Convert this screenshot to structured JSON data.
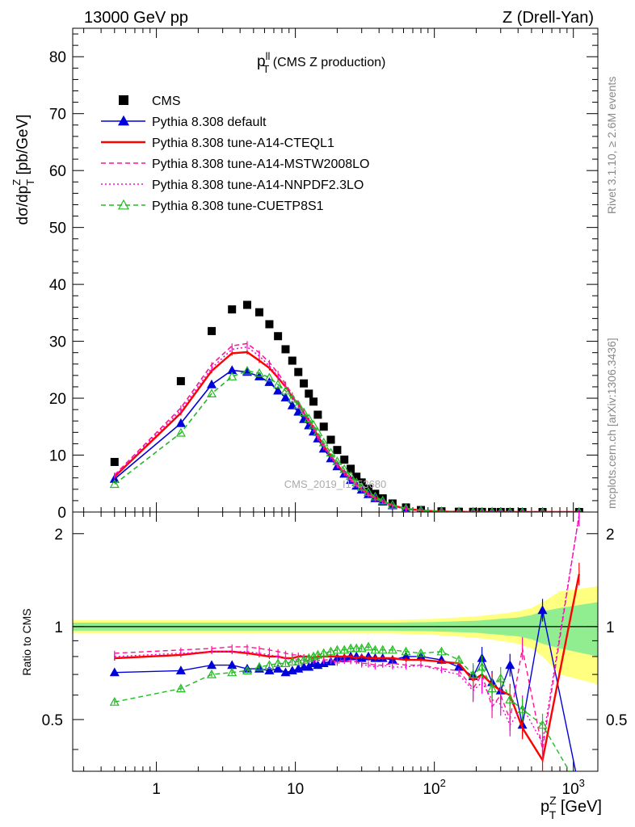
{
  "header": {
    "left": "13000 GeV pp",
    "right": "Z (Drell-Yan)"
  },
  "side_labels": {
    "top": "Rivet 3.1.10, ≥ 2.6M events",
    "bottom": "mcplots.cern.ch [arXiv:1306.3436]"
  },
  "watermark": "CMS_2019_I1753680",
  "plot_title": {
    "main": "p",
    "sup": "ll",
    "sub": "T",
    "rest": " (CMS Z production)"
  },
  "colors": {
    "cms": "#000000",
    "default": "#0000dd",
    "cteql1": "#ff0000",
    "mstw": "#ff1493",
    "nnpdf": "#ff00dd",
    "cuetp": "#22bb22",
    "band_inner": "#90ee90",
    "band_outer": "#ffff80"
  },
  "chart_data": [
    {
      "type": "scatter",
      "panel": "main",
      "ylabel": "dσ/dp",
      "ylabel_sup": "Z",
      "ylabel_sub": "T",
      "ylabel_rest": " [pb/GeV]",
      "xscale": "log",
      "xlim": [
        0.25,
        1500
      ],
      "ylim": [
        0,
        85
      ],
      "yticks": [
        "0",
        "10",
        "20",
        "30",
        "40",
        "50",
        "60",
        "70",
        "80"
      ],
      "legend_position": "top-left",
      "x": [
        0.5,
        1.5,
        2.5,
        3.5,
        4.5,
        5.5,
        6.5,
        7.5,
        8.5,
        9.5,
        10.5,
        11.5,
        12.5,
        13.5,
        14.5,
        16,
        18,
        20,
        22.5,
        25,
        27.5,
        30,
        33.5,
        37.5,
        42.5,
        50,
        62.5,
        80,
        112.5,
        150,
        190,
        220,
        260,
        300,
        350,
        430,
        600,
        1100
      ],
      "series": [
        {
          "name": "CMS",
          "key": "cms",
          "marker": "square",
          "values": [
            8.8,
            23.0,
            31.8,
            35.6,
            36.4,
            35.1,
            33.0,
            30.9,
            28.6,
            26.6,
            24.6,
            22.6,
            20.8,
            19.4,
            17.1,
            15.0,
            12.7,
            10.9,
            9.2,
            7.6,
            6.2,
            5.2,
            4.1,
            3.2,
            2.4,
            1.5,
            0.8,
            0.35,
            0.12,
            0.05,
            0.03,
            0.02,
            0.012,
            0.008,
            0.005,
            0.003,
            0.001,
            0.0005
          ]
        },
        {
          "name": "Pythia 8.308 default",
          "key": "default",
          "marker": "triangle",
          "line": "solid",
          "values": [
            5.8,
            15.6,
            22.4,
            24.9,
            24.6,
            23.8,
            22.8,
            21.3,
            20.1,
            18.7,
            17.6,
            16.3,
            15.2,
            14.1,
            12.9,
            11.1,
            9.4,
            8.0,
            6.7,
            5.6,
            4.6,
            3.9,
            3.1,
            2.4,
            1.8,
            1.15,
            0.55,
            0.25,
            0.08,
            0.035,
            0.02,
            0.012,
            0.008,
            0.006,
            0.003,
            0.002,
            0.001,
            0.0002
          ]
        },
        {
          "name": "Pythia 8.308 tune-A14-CTEQL1",
          "key": "cteql1",
          "line": "solid",
          "values": [
            6.2,
            17.4,
            24.8,
            27.9,
            28.1,
            26.6,
            25.3,
            23.6,
            22.0,
            20.2,
            18.9,
            17.4,
            16.1,
            14.8,
            13.3,
            11.6,
            9.8,
            8.3,
            6.9,
            5.8,
            4.9,
            4.0,
            3.2,
            2.5,
            1.9,
            1.15,
            0.6,
            0.27,
            0.09,
            0.04,
            0.02,
            0.012,
            0.008,
            0.005,
            0.003,
            0.0015,
            0.0004,
            0.0008
          ]
        },
        {
          "name": "Pythia 8.308 tune-A14-MSTW2008LO",
          "key": "mstw",
          "line": "dashed",
          "values": [
            6.5,
            18.3,
            25.9,
            29.2,
            29.6,
            28.0,
            26.3,
            24.4,
            22.5,
            20.6,
            19.2,
            17.6,
            16.2,
            14.9,
            13.4,
            11.7,
            9.9,
            8.4,
            7.0,
            5.8,
            4.8,
            3.9,
            3.1,
            2.4,
            1.8,
            1.1,
            0.57,
            0.26,
            0.09,
            0.04,
            0.02,
            0.012,
            0.007,
            0.005,
            0.0025,
            0.0015,
            0.0005,
            0.0012
          ]
        },
        {
          "name": "Pythia 8.308 tune-A14-NNPDF2.3LO",
          "key": "nnpdf",
          "line": "dotted",
          "values": [
            6.4,
            17.9,
            25.3,
            28.6,
            29.0,
            27.4,
            25.7,
            23.8,
            22.0,
            20.1,
            18.7,
            17.1,
            15.8,
            14.5,
            13.0,
            11.4,
            9.6,
            8.1,
            6.8,
            5.6,
            4.7,
            3.8,
            3.0,
            2.3,
            1.75,
            1.05,
            0.55,
            0.25,
            0.085,
            0.035,
            0.018,
            0.011,
            0.007,
            0.0045,
            0.0025,
            0.0012,
            0.0004,
            0.0012
          ]
        },
        {
          "name": "Pythia 8.308 tune-CUETP8S1",
          "key": "cuetp",
          "marker": "open-triangle",
          "line": "dashed",
          "values": [
            4.9,
            13.9,
            20.8,
            23.8,
            24.8,
            24.4,
            23.6,
            22.4,
            21.3,
            19.9,
            18.8,
            17.5,
            16.4,
            15.3,
            14.0,
            12.2,
            10.4,
            8.9,
            7.5,
            6.3,
            5.2,
            4.4,
            3.5,
            2.7,
            2.0,
            1.25,
            0.62,
            0.28,
            0.1,
            0.042,
            0.021,
            0.013,
            0.008,
            0.005,
            0.003,
            0.0016,
            0.0005,
            0.0003
          ]
        }
      ]
    },
    {
      "type": "line",
      "panel": "ratio",
      "ylabel": "Ratio to CMS",
      "xlabel": "p",
      "xlabel_sup": "Z",
      "xlabel_sub": "T",
      "xlabel_rest": " [GeV]",
      "xscale": "log",
      "xlim": [
        0.25,
        1500
      ],
      "ylim": [
        0.34,
        2.35
      ],
      "yscale": "log",
      "yticks_left": [
        "0.5",
        "1",
        "2"
      ],
      "xticks": [
        "1",
        "10",
        "10^2",
        "10^3"
      ],
      "x": [
        0.5,
        1.5,
        2.5,
        3.5,
        4.5,
        5.5,
        6.5,
        7.5,
        8.5,
        9.5,
        10.5,
        11.5,
        12.5,
        13.5,
        14.5,
        16,
        18,
        20,
        22.5,
        25,
        27.5,
        30,
        33.5,
        37.5,
        42.5,
        50,
        62.5,
        80,
        112.5,
        150,
        190,
        220,
        260,
        300,
        350,
        430,
        600,
        1100
      ],
      "series": [
        {
          "name": "Pythia 8.308 default",
          "key": "default",
          "values": [
            0.71,
            0.72,
            0.75,
            0.75,
            0.73,
            0.73,
            0.72,
            0.73,
            0.71,
            0.72,
            0.73,
            0.74,
            0.74,
            0.76,
            0.75,
            0.76,
            0.77,
            0.79,
            0.79,
            0.8,
            0.8,
            0.79,
            0.8,
            0.79,
            0.79,
            0.78,
            0.8,
            0.8,
            0.78,
            0.74,
            0.69,
            0.79,
            0.66,
            0.62,
            0.75,
            0.48,
            1.13,
            0.3
          ]
        },
        {
          "name": "Pythia 8.308 tune-A14-CTEQL1",
          "key": "cteql1",
          "values": [
            0.79,
            0.81,
            0.83,
            0.83,
            0.82,
            0.81,
            0.8,
            0.8,
            0.79,
            0.79,
            0.8,
            0.8,
            0.8,
            0.79,
            0.8,
            0.8,
            0.8,
            0.8,
            0.8,
            0.8,
            0.79,
            0.8,
            0.79,
            0.79,
            0.79,
            0.79,
            0.78,
            0.78,
            0.77,
            0.76,
            0.67,
            0.7,
            0.65,
            0.62,
            0.6,
            0.47,
            0.37,
            1.48
          ]
        },
        {
          "name": "Pythia 8.308 tune-A14-MSTW2008LO",
          "key": "mstw",
          "values": [
            0.82,
            0.84,
            0.85,
            0.86,
            0.86,
            0.85,
            0.84,
            0.83,
            0.82,
            0.81,
            0.81,
            0.8,
            0.8,
            0.79,
            0.79,
            0.78,
            0.78,
            0.77,
            0.78,
            0.77,
            0.77,
            0.76,
            0.76,
            0.75,
            0.75,
            0.76,
            0.75,
            0.75,
            0.73,
            0.72,
            0.63,
            0.7,
            0.55,
            0.6,
            0.5,
            0.85,
            0.4,
            2.3
          ]
        },
        {
          "name": "Pythia 8.308 tune-A14-NNPDF2.3LO",
          "key": "nnpdf",
          "values": [
            0.8,
            0.82,
            0.83,
            0.83,
            0.83,
            0.82,
            0.81,
            0.8,
            0.79,
            0.78,
            0.78,
            0.77,
            0.78,
            0.77,
            0.78,
            0.77,
            0.77,
            0.76,
            0.77,
            0.77,
            0.77,
            0.75,
            0.75,
            0.74,
            0.75,
            0.74,
            0.74,
            0.75,
            0.72,
            0.7,
            0.62,
            0.66,
            0.58,
            0.56,
            0.48,
            0.55,
            0.42,
            2.3
          ]
        },
        {
          "name": "Pythia 8.308 tune-CUETP8S1",
          "key": "cuetp",
          "values": [
            0.57,
            0.63,
            0.7,
            0.71,
            0.72,
            0.74,
            0.75,
            0.76,
            0.76,
            0.77,
            0.77,
            0.78,
            0.79,
            0.8,
            0.81,
            0.82,
            0.83,
            0.84,
            0.84,
            0.85,
            0.85,
            0.85,
            0.86,
            0.84,
            0.84,
            0.84,
            0.83,
            0.82,
            0.83,
            0.78,
            0.7,
            0.74,
            0.63,
            0.68,
            0.58,
            0.54,
            0.48,
            0.3
          ]
        }
      ],
      "band": {
        "x": [
          0.25,
          2,
          10,
          50,
          100,
          200,
          300,
          400,
          500,
          600,
          800,
          1500
        ],
        "inner_half": [
          0.03,
          0.03,
          0.03,
          0.03,
          0.035,
          0.045,
          0.06,
          0.07,
          0.09,
          0.12,
          0.15,
          0.2
        ],
        "outer_half": [
          0.05,
          0.05,
          0.05,
          0.05,
          0.06,
          0.08,
          0.1,
          0.12,
          0.15,
          0.2,
          0.3,
          0.35
        ]
      }
    }
  ]
}
